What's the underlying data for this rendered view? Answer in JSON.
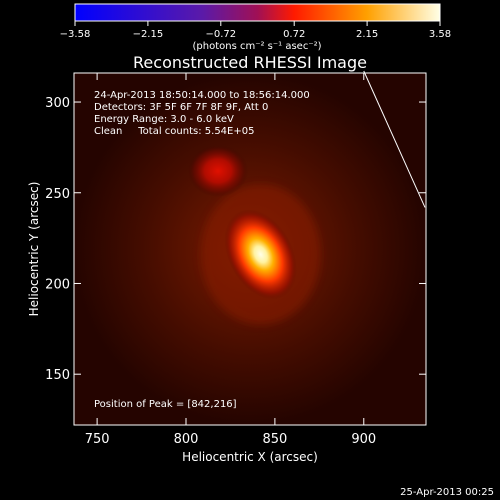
{
  "chart_data": {
    "type": "heatmap",
    "title": "Reconstructed RHESSI Image",
    "xlabel": "Heliocentric X (arcsec)",
    "ylabel": "Heliocentric Y (arcsec)",
    "xlim": [
      737,
      935
    ],
    "ylim": [
      122,
      316
    ],
    "x_ticks": [
      750,
      800,
      850,
      900
    ],
    "y_ticks": [
      150,
      200,
      250,
      300
    ],
    "colorbar": {
      "ticks": [
        -3.58,
        -2.15,
        -0.72,
        0.72,
        2.15,
        3.58
      ],
      "tick_labels": [
        "−3.58",
        "−2.15",
        "−0.72",
        "0.72",
        "2.15",
        "3.58"
      ],
      "range": [
        -3.58,
        3.58
      ],
      "unit_label": "(photons cm⁻² s⁻¹ asec⁻²)",
      "colors": [
        "#0000ff",
        "#6a1fa0",
        "#c0185a",
        "#ff2a00",
        "#ffb000",
        "#ffffe0"
      ]
    },
    "sources": [
      {
        "x": 842,
        "y": 216,
        "relative_intensity": 1.0
      },
      {
        "x": 818,
        "y": 262,
        "relative_intensity": 0.55
      }
    ],
    "peak": [
      842,
      216
    ],
    "annotations": [
      "24-Apr-2013 18:50:14.000 to 18:56:14.000",
      "Detectors: 3F 5F 6F 7F 8F 9F, Att 0",
      "Energy Range: 3.0 - 6.0 keV",
      "Clean     Total counts: 5.54E+05"
    ],
    "peak_label": "Position of Peak = [842,216]",
    "limb_line": {
      "x": [
        900,
        935
      ],
      "y": [
        316,
        243
      ]
    }
  },
  "footer": {
    "timestamp": "25-Apr-2013 00:25"
  }
}
